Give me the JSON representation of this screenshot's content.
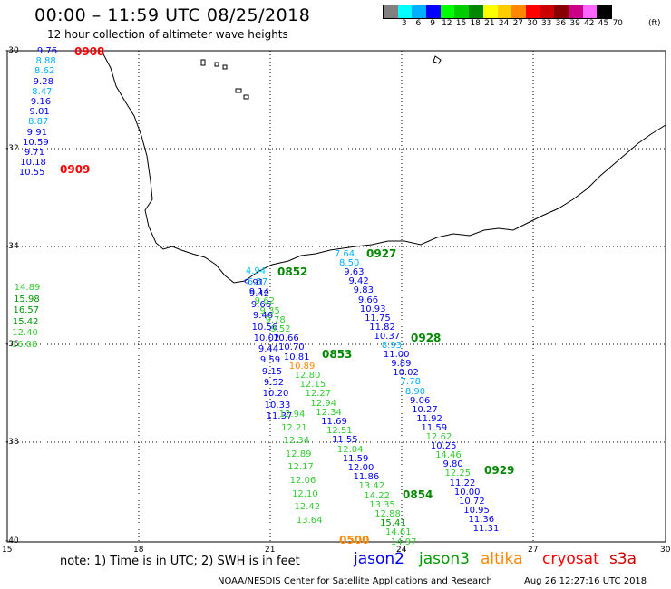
{
  "header": {
    "title": "00:00 – 11:59 UTC 08/25/2018",
    "subtitle": "12 hour collection of altimeter wave heights"
  },
  "colorbar": {
    "colors": [
      "#808080",
      "#00ffff",
      "#00b0ff",
      "#0000ff",
      "#00ff00",
      "#00cc00",
      "#008800",
      "#ffff00",
      "#ffcc00",
      "#ff8800",
      "#ff0000",
      "#cc0000",
      "#880000",
      "#cc0088",
      "#ff66ff",
      "#000000"
    ],
    "labels": [
      "3",
      "6",
      "9",
      "12",
      "15",
      "18",
      "21",
      "24",
      "27",
      "30",
      "33",
      "36",
      "39",
      "42",
      "45",
      "70"
    ],
    "unit": "(ft)"
  },
  "axes": {
    "lat_labels": [
      "-30",
      "-32",
      "-34",
      "-36",
      "-38",
      "-40"
    ],
    "lon_labels": [
      "15",
      "18",
      "21",
      "24",
      "27",
      "30"
    ]
  },
  "tracks": [
    {
      "name": "west_track",
      "points": [
        {
          "v": "9.76",
          "c": "#0000ff"
        },
        {
          "v": "8.88",
          "c": "#00b0ff"
        },
        {
          "v": "8.62",
          "c": "#00b0ff"
        },
        {
          "v": "9.28",
          "c": "#0000ff"
        },
        {
          "v": "8.47",
          "c": "#00b0ff"
        },
        {
          "v": "9.16",
          "c": "#0000ff"
        },
        {
          "v": "9.01",
          "c": "#0000ff"
        },
        {
          "v": "8.87",
          "c": "#00b0ff"
        },
        {
          "v": "9.91",
          "c": "#0000ff"
        },
        {
          "v": "10.59",
          "c": "#0000ff"
        },
        {
          "v": "9.71",
          "c": "#0000ff"
        },
        {
          "v": "10.18",
          "c": "#0000ff"
        },
        {
          "v": "10.55",
          "c": "#0000ff"
        }
      ]
    },
    {
      "name": "left_edge",
      "points": [
        {
          "v": "14.89",
          "c": "#33cc33"
        },
        {
          "v": "15.98",
          "c": "#009900"
        },
        {
          "v": "16.57",
          "c": "#009900"
        },
        {
          "v": "15.42",
          "c": "#009900"
        },
        {
          "v": "12.40",
          "c": "#33cc33"
        },
        {
          "v": "16.08",
          "c": "#33cc33"
        }
      ]
    },
    {
      "name": "jason2_a",
      "points": [
        {
          "v": "4.94",
          "c": "#00ccff"
        },
        {
          "v": "6.57",
          "c": "#00b0ff"
        },
        {
          "v": "9.42",
          "c": "#0000ff"
        },
        {
          "v": "9.66",
          "c": "#0000ff"
        },
        {
          "v": "9.46",
          "c": "#0000ff"
        },
        {
          "v": "10.56",
          "c": "#0000ff"
        },
        {
          "v": "10.02",
          "c": "#0000ff"
        },
        {
          "v": "9.44",
          "c": "#0000ff"
        },
        {
          "v": "9.59",
          "c": "#0000ff"
        },
        {
          "v": "9.15",
          "c": "#0000ff"
        },
        {
          "v": "9.52",
          "c": "#0000ff"
        },
        {
          "v": "10.20",
          "c": "#0000ff"
        },
        {
          "v": "10.33",
          "c": "#0000ff"
        },
        {
          "v": "11.37",
          "c": "#0000ff"
        }
      ]
    },
    {
      "name": "jason3_a",
      "points": [
        {
          "v": "12.94",
          "c": "#33cc33"
        },
        {
          "v": "12.21",
          "c": "#33cc33"
        },
        {
          "v": "12.34",
          "c": "#33cc33"
        },
        {
          "v": "12.89",
          "c": "#33cc33"
        },
        {
          "v": "12.17",
          "c": "#33cc33"
        },
        {
          "v": "12.06",
          "c": "#33cc33"
        },
        {
          "v": "12.10",
          "c": "#33cc33"
        },
        {
          "v": "12.42",
          "c": "#33cc33"
        },
        {
          "v": "13.64",
          "c": "#33cc33"
        }
      ]
    },
    {
      "name": "mid_track",
      "points": [
        {
          "v": "9.91",
          "c": "#0000ff"
        },
        {
          "v": "9.14",
          "c": "#0000ff"
        },
        {
          "v": "9.62",
          "c": "#33cc33"
        },
        {
          "v": "9.35",
          "c": "#33cc33"
        },
        {
          "v": "9.78",
          "c": "#33cc33"
        },
        {
          "v": "9.52",
          "c": "#33cc33"
        },
        {
          "v": "10.66",
          "c": "#0000ff"
        },
        {
          "v": "10.70",
          "c": "#0000ff"
        },
        {
          "v": "10.81",
          "c": "#0000ff"
        },
        {
          "v": "10.89",
          "c": "#ff8800"
        },
        {
          "v": "12.80",
          "c": "#33cc33"
        },
        {
          "v": "12.15",
          "c": "#33cc33"
        },
        {
          "v": "12.27",
          "c": "#33cc33"
        },
        {
          "v": "12.94",
          "c": "#33cc33"
        },
        {
          "v": "12.34",
          "c": "#33cc33"
        },
        {
          "v": "11.69",
          "c": "#0000ff"
        },
        {
          "v": "12.51",
          "c": "#33cc33"
        },
        {
          "v": "11.55",
          "c": "#0000ff"
        },
        {
          "v": "12.04",
          "c": "#33cc33"
        },
        {
          "v": "11.59",
          "c": "#0000ff"
        },
        {
          "v": "12.00",
          "c": "#0000ff"
        },
        {
          "v": "11.86",
          "c": "#0000ff"
        },
        {
          "v": "13.42",
          "c": "#33cc33"
        },
        {
          "v": "14.22",
          "c": "#33cc33"
        },
        {
          "v": "13.35",
          "c": "#33cc33"
        },
        {
          "v": "12.88",
          "c": "#33cc33"
        },
        {
          "v": "15.41",
          "c": "#009900"
        },
        {
          "v": "14.61",
          "c": "#33cc33"
        },
        {
          "v": "14.97",
          "c": "#33cc33"
        }
      ]
    },
    {
      "name": "east_track",
      "points": [
        {
          "v": "7.64",
          "c": "#00b0ff"
        },
        {
          "v": "8.50",
          "c": "#00b0ff"
        },
        {
          "v": "9.63",
          "c": "#0000ff"
        },
        {
          "v": "9.42",
          "c": "#0000ff"
        },
        {
          "v": "9.83",
          "c": "#0000ff"
        },
        {
          "v": "9.66",
          "c": "#0000ff"
        },
        {
          "v": "10.93",
          "c": "#0000ff"
        },
        {
          "v": "11.75",
          "c": "#0000ff"
        },
        {
          "v": "11.82",
          "c": "#0000ff"
        },
        {
          "v": "10.37",
          "c": "#0000ff"
        },
        {
          "v": "8.93",
          "c": "#00b0ff"
        },
        {
          "v": "11.00",
          "c": "#0000ff"
        },
        {
          "v": "9.89",
          "c": "#0000ff"
        },
        {
          "v": "10.02",
          "c": "#0000ff"
        },
        {
          "v": "7.78",
          "c": "#00b0ff"
        },
        {
          "v": "8.90",
          "c": "#00b0ff"
        },
        {
          "v": "9.06",
          "c": "#0000ff"
        },
        {
          "v": "10.27",
          "c": "#0000ff"
        },
        {
          "v": "11.92",
          "c": "#0000ff"
        },
        {
          "v": "11.59",
          "c": "#0000ff"
        },
        {
          "v": "12.62",
          "c": "#33cc33"
        },
        {
          "v": "10.25",
          "c": "#0000ff"
        },
        {
          "v": "14.46",
          "c": "#33cc33"
        },
        {
          "v": "9.80",
          "c": "#0000ff"
        },
        {
          "v": "12.25",
          "c": "#33cc33"
        },
        {
          "v": "11.22",
          "c": "#0000ff"
        },
        {
          "v": "10.00",
          "c": "#0000ff"
        },
        {
          "v": "10.72",
          "c": "#0000ff"
        },
        {
          "v": "10.95",
          "c": "#0000ff"
        },
        {
          "v": "11.36",
          "c": "#0000ff"
        },
        {
          "v": "11.31",
          "c": "#0000ff"
        }
      ]
    }
  ],
  "time_labels": [
    {
      "t": "0908",
      "c": "#ff0000"
    },
    {
      "t": "0909",
      "c": "#ff0000"
    },
    {
      "t": "0927",
      "c": "#008800"
    },
    {
      "t": "0852",
      "c": "#008800"
    },
    {
      "t": "0928",
      "c": "#008800"
    },
    {
      "t": "0853",
      "c": "#008800"
    },
    {
      "t": "0929",
      "c": "#008800"
    },
    {
      "t": "0854",
      "c": "#008800"
    },
    {
      "t": "0500",
      "c": "#ff8800"
    }
  ],
  "note": "note: 1) Time is in UTC; 2) SWH is in feet",
  "legend": [
    {
      "label": "jason2",
      "c": "#0000ff"
    },
    {
      "label": "jason3",
      "c": "#009900"
    },
    {
      "label": "altika",
      "c": "#ff8800"
    },
    {
      "label": "cryosat",
      "c": "#ff0000"
    },
    {
      "label": "s3a",
      "c": "#cc0000"
    }
  ],
  "footer": {
    "left": "NOAA/NESDIS Center for Satellite Applications and Research",
    "right": "Aug 26 12:27:16 UTC 2018"
  }
}
